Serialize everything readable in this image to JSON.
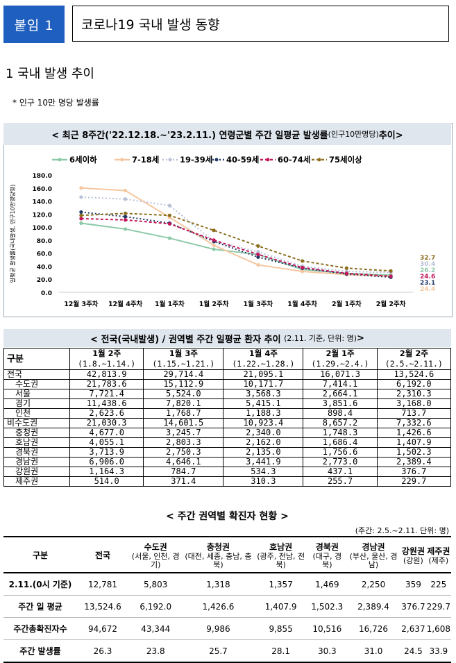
{
  "header": {
    "badge": "붙임 1",
    "title": "코로나19 국내 발생 동향"
  },
  "section1": {
    "heading": "1  국내 발생 추이",
    "note": "* 인구 10만 명당 발생률"
  },
  "chart": {
    "title": "< 최근 8주간('22.12.18.~'23.2.11.) 연령군별 주간 일평균 발생률",
    "title_unit": "(인구10만명당)",
    "title_tail": " 추이>"
  },
  "chart_data": {
    "type": "line",
    "categories": [
      "12월 3주차",
      "12월 4주차",
      "1월 1주차",
      "1월 2주차",
      "1월 3주차",
      "1월 4주차",
      "2월 1주차",
      "2월 2주차"
    ],
    "ylabel": "일평균 발생률(국내발생, 인구10만명당명)",
    "ylim": [
      0,
      180
    ],
    "yticks": [
      "0.0",
      "20.0",
      "40.0",
      "60.0",
      "80.0",
      "100.0",
      "120.0",
      "140.0",
      "160.0",
      "180.0"
    ],
    "legend_position": "top",
    "series": [
      {
        "name": "6세이하",
        "color": "#8cc9a8",
        "dash": "solid",
        "values": [
          106,
          97,
          83,
          66,
          58,
          35,
          29,
          26.2
        ]
      },
      {
        "name": "7-18세",
        "color": "#f5c7a0",
        "dash": "solid",
        "values": [
          160,
          156,
          115,
          72,
          42,
          32,
          27,
          24.4
        ]
      },
      {
        "name": "19-39세",
        "color": "#b7c0d6",
        "dash": "dot",
        "values": [
          146,
          143,
          133,
          78,
          62,
          40,
          32,
          30.4
        ]
      },
      {
        "name": "40-59세",
        "color": "#1f3864",
        "dash": "dot",
        "values": [
          123,
          116,
          106,
          78,
          54,
          37,
          28,
          23.1
        ]
      },
      {
        "name": "60-74세",
        "color": "#c2185b",
        "dash": "dash",
        "values": [
          113,
          111,
          105,
          80,
          58,
          38,
          29,
          24.6
        ]
      },
      {
        "name": "75세이상",
        "color": "#8b6d1c",
        "dash": "dash",
        "values": [
          118,
          121,
          118,
          95,
          71,
          48,
          37,
          32.7
        ]
      }
    ],
    "end_labels": [
      "32.7",
      "30.4",
      "26.2",
      "24.6",
      "23.1",
      "24.4"
    ]
  },
  "table1": {
    "title": "< 전국(국내발생) / 권역별 주간 일평균 환자 추이",
    "title_unit": "(2.11. 기준, 단위: 명)",
    "title_tail": " >",
    "header_label": "구분",
    "columns": [
      {
        "week": "1월 2주",
        "range": "(1.8.~1.14.)"
      },
      {
        "week": "1월 3주",
        "range": "(1.15.~1.21.)"
      },
      {
        "week": "1월 4주",
        "range": "(1.22.~1.28.)"
      },
      {
        "week": "2월 1주",
        "range": "(1.29.~2.4.)"
      },
      {
        "week": "2월 2주",
        "range": "(2.5.~2.11.)"
      }
    ],
    "rows": [
      {
        "label": "전국",
        "values": [
          "42,813.9",
          "29,714.4",
          "21,095.1",
          "16,071.3",
          "13,524.6"
        ]
      },
      {
        "label": "수도권",
        "values": [
          "21,783.6",
          "15,112.9",
          "10,171.7",
          "7,414.1",
          "6,192.0"
        ]
      },
      {
        "label": "서울",
        "values": [
          "7,721.4",
          "5,524.0",
          "3,568.3",
          "2,664.1",
          "2,310.3"
        ]
      },
      {
        "label": "경기",
        "values": [
          "11,438.6",
          "7,820.1",
          "5,415.1",
          "3,851.6",
          "3,168.0"
        ]
      },
      {
        "label": "인천",
        "values": [
          "2,623.6",
          "1,768.7",
          "1,188.3",
          "898.4",
          "713.7"
        ]
      },
      {
        "label": "비수도권",
        "values": [
          "21,030.3",
          "14,601.5",
          "10,923.4",
          "8,657.2",
          "7,332.6"
        ]
      },
      {
        "label": "충청권",
        "values": [
          "4,677.0",
          "3,245.7",
          "2,340.0",
          "1,748.3",
          "1,426.6"
        ]
      },
      {
        "label": "호남권",
        "values": [
          "4,055.1",
          "2,803.3",
          "2,162.0",
          "1,686.4",
          "1,407.9"
        ]
      },
      {
        "label": "경북권",
        "values": [
          "3,713.9",
          "2,750.3",
          "2,135.0",
          "1,756.6",
          "1,502.3"
        ]
      },
      {
        "label": "경남권",
        "values": [
          "6,906.0",
          "4,646.1",
          "3,441.9",
          "2,773.0",
          "2,389.4"
        ]
      },
      {
        "label": "강원권",
        "values": [
          "1,164.3",
          "784.7",
          "534.3",
          "437.1",
          "376.7"
        ]
      },
      {
        "label": "제주권",
        "values": [
          "514.0",
          "371.4",
          "310.3",
          "255.7",
          "229.7"
        ]
      }
    ]
  },
  "table2": {
    "title": "< 주간 권역별 확진자 현황 >",
    "unit": "(주간: 2.5.~2.11. 단위: 명)",
    "header_label": "구분",
    "columns": [
      {
        "name": "전국",
        "sub": ""
      },
      {
        "name": "수도권",
        "sub": "(서울, 인천, 경기)"
      },
      {
        "name": "충청권",
        "sub": "(대전, 세종, 충남, 충북)"
      },
      {
        "name": "호남권",
        "sub": "(광주, 전남, 전북)"
      },
      {
        "name": "경북권",
        "sub": "(대구, 경북)"
      },
      {
        "name": "경남권",
        "sub": "(부산, 울산, 경남)"
      },
      {
        "name": "강원권",
        "sub": "(강원)"
      },
      {
        "name": "제주권",
        "sub": "(제주)"
      }
    ],
    "rows": [
      {
        "label": "2.11.(0시 기준)",
        "values": [
          "12,781",
          "5,803",
          "1,318",
          "1,357",
          "1,469",
          "2,250",
          "359",
          "225"
        ]
      },
      {
        "label": "주간 일 평균",
        "values": [
          "13,524.6",
          "6,192.0",
          "1,426.6",
          "1,407.9",
          "1,502.3",
          "2,389.4",
          "376.7",
          "229.7"
        ]
      },
      {
        "label": "주간총확진자수",
        "values": [
          "94,672",
          "43,344",
          "9,986",
          "9,855",
          "10,516",
          "16,726",
          "2,637",
          "1,608"
        ]
      },
      {
        "label": "주간 발생률",
        "values": [
          "26.3",
          "23.8",
          "25.7",
          "28.1",
          "30.3",
          "31.0",
          "24.5",
          "33.9"
        ]
      }
    ]
  }
}
